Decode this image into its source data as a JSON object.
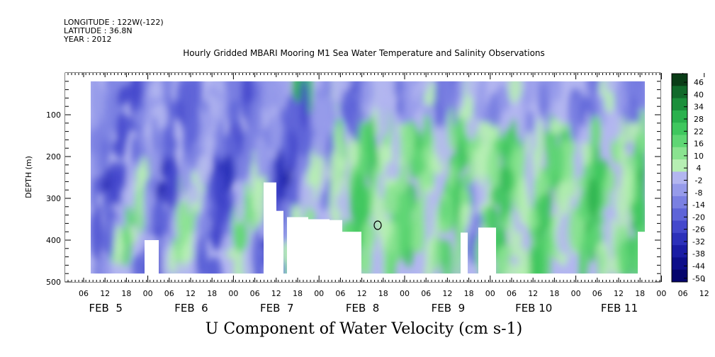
{
  "header": {
    "longitude": "LONGITUDE : 122W(-122)",
    "latitude": "LATITUDE : 36.8N",
    "year": "YEAR : 2012"
  },
  "chart_data": {
    "type": "heatmap",
    "title": "Hourly Gridded MBARI Mooring M1 Sea Water Temperature and Salinity Observations",
    "xlabel": "U Component of Water Velocity (cm s-1)",
    "ylabel": "DEPTH (m)",
    "ylim": [
      500,
      0
    ],
    "yticks": [
      100,
      200,
      300,
      400,
      500
    ],
    "hour_tick_labels": [
      "06",
      "12",
      "18",
      "00",
      "06",
      "12",
      "18",
      "00",
      "06",
      "12",
      "18",
      "00",
      "06",
      "12",
      "18",
      "00",
      "06",
      "12",
      "18",
      "00",
      "06",
      "12",
      "18",
      "00",
      "06",
      "12",
      "18",
      "00",
      "06",
      "12",
      "18"
    ],
    "day_labels": [
      "FEB  5",
      "FEB  6",
      "FEB  7",
      "FEB  8",
      "FEB  9",
      "FEB 10",
      "FEB 11"
    ],
    "colorbar_levels": [
      46,
      40,
      34,
      28,
      22,
      16,
      10,
      4,
      -2,
      -8,
      -14,
      -20,
      -26,
      -32,
      -38,
      -44,
      -50
    ],
    "colorbar_colors": [
      "#0a3d17",
      "#116a2b",
      "#1b8f3b",
      "#2ab14d",
      "#3fc75e",
      "#5fd674",
      "#8ae390",
      "#b6eeb3",
      "#b3b6f0",
      "#969bea",
      "#7a80e2",
      "#5e64d8",
      "#4448cc",
      "#2c30ba",
      "#1a1ca4",
      "#0d0e8a",
      "#05056d"
    ],
    "colorbar_value_range": [
      -50,
      52
    ],
    "depth_range_m": [
      20,
      480
    ],
    "field_note_values_cm_s": {
      "upper_layer_feb5_feb7": -12,
      "surface_jet_feb7_12h": 30,
      "mid_layer_feb8_feb11": 14,
      "feb9_18h_column": -8
    }
  }
}
